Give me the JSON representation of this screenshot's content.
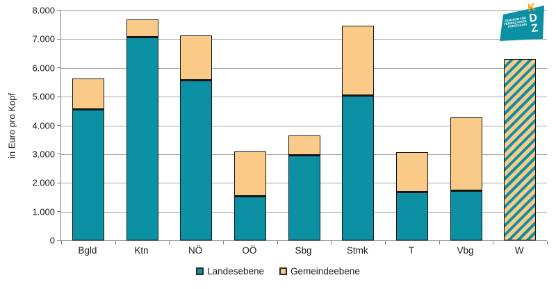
{
  "y_axis": {
    "title": "in Euro pro Kopf"
  },
  "chart_data": {
    "type": "bar",
    "stacked": true,
    "title": "",
    "xlabel": "",
    "ylabel": "in Euro pro Kopf",
    "ylim": [
      0,
      8000
    ],
    "grid": "horizontal",
    "legend_position": "bottom-center",
    "yticks": [
      {
        "value": 0,
        "label": "0"
      },
      {
        "value": 1000,
        "label": "1.000"
      },
      {
        "value": 2000,
        "label": "2.000"
      },
      {
        "value": 3000,
        "label": "3.000"
      },
      {
        "value": 4000,
        "label": "4.000"
      },
      {
        "value": 5000,
        "label": "5.000"
      },
      {
        "value": 6000,
        "label": "6.000"
      },
      {
        "value": 7000,
        "label": "7.000"
      },
      {
        "value": 8000,
        "label": "8.000"
      }
    ],
    "categories": [
      "Bgld",
      "Ktn",
      "NÖ",
      "OÖ",
      "Sbg",
      "Stmk",
      "T",
      "Vbg",
      "W"
    ],
    "series": [
      {
        "name": "Landesebene",
        "color": "#0C90A3",
        "values": [
          4550,
          7060,
          5560,
          1530,
          2940,
          5030,
          1680,
          1720,
          null
        ]
      },
      {
        "name": "Gemeindeebene",
        "color": "#FACA89",
        "values": [
          1080,
          630,
          1580,
          1570,
          710,
          2430,
          1380,
          2570,
          null
        ]
      }
    ],
    "special_bars": [
      {
        "category": "W",
        "value": 6300,
        "style": "diagonal-hatch-teal-on-orange"
      }
    ]
  },
  "legend": {
    "items": [
      {
        "label": "Landesebene",
        "color": "#0C90A3"
      },
      {
        "label": "Gemeindeebene",
        "color": "#FACA89"
      }
    ]
  },
  "logo": {
    "lines": [
      "ZENTRUM FÜR",
      "VERWALTUNGS",
      "FORSCHUNG"
    ],
    "letters": [
      "K",
      "D",
      "Z"
    ],
    "teal": "#0C90A3",
    "k_color": "#F59C00"
  },
  "colors": {
    "teal": "#0C90A3",
    "orange": "#FACA89",
    "gridline": "#A6A6A6",
    "axis": "#808080",
    "bar_border": "#141414"
  }
}
